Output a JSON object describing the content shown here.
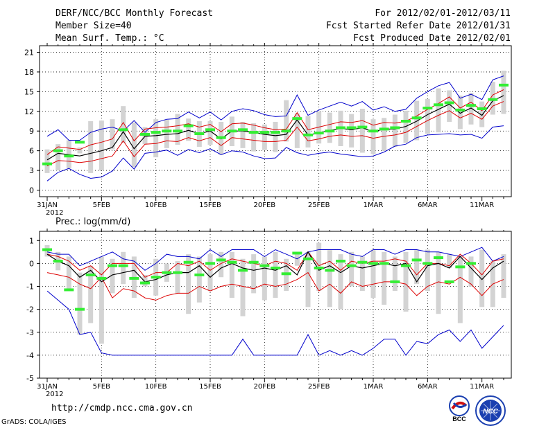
{
  "header": {
    "title": "DERF/NCC/BCC Monthly Forecast",
    "member_size": "Member Size=40",
    "variable": "Mean Surf. Temp.: °C",
    "period": "For 2012/02/01-2012/03/11",
    "fcst_started": "Fcst Started Refer Date 2012/01/31",
    "fcst_produced": "Fcst Produced Date 2012/02/01"
  },
  "footer": {
    "url": "http://cmdp.ncc.cma.gov.cn",
    "grads": "GrADS: COLA/IGES",
    "logo_bcc": "BCC",
    "logo_ncc": "NCC"
  },
  "colors": {
    "max_min": "#0000cc",
    "spread": "#dd0000",
    "mean": "#000000",
    "observed": "#33ee33",
    "box": "#d3d3d3"
  },
  "chart_data": [
    {
      "type": "line",
      "title": "Mean Surf. Temp.: °C",
      "x_start": "31JAN 2012",
      "x_ticks": [
        "31JAN",
        "5FEB",
        "10FEB",
        "15FEB",
        "20FEB",
        "25FEB",
        "1MAR",
        "6MAR",
        "11MAR"
      ],
      "x_year_label": "2012",
      "y_ticks": [
        0,
        3,
        6,
        9,
        12,
        15,
        18,
        21
      ],
      "ylim": [
        -1,
        22
      ],
      "series": [
        {
          "name": "max",
          "values": [
            8.2,
            9.2,
            7.6,
            7.6,
            8.8,
            9.3,
            9.6,
            9.0,
            10.6,
            8.8,
            10.3,
            10.8,
            10.9,
            11.9,
            11.0,
            11.9,
            10.7,
            12.0,
            12.4,
            12.1,
            11.5,
            11.2,
            11.3,
            14.5,
            11.4,
            12.2,
            12.8,
            13.4,
            12.8,
            13.5,
            12.2,
            12.7,
            12.0,
            12.3,
            14.0,
            15.0,
            15.9,
            16.4,
            14.0,
            14.6,
            13.8,
            16.8,
            17.4
          ]
        },
        {
          "name": "min",
          "values": [
            1.4,
            2.7,
            3.3,
            2.4,
            1.8,
            2.0,
            2.9,
            4.9,
            3.2,
            5.6,
            5.8,
            6.1,
            5.3,
            6.2,
            5.7,
            6.3,
            5.4,
            6.0,
            5.8,
            5.2,
            4.8,
            4.9,
            6.5,
            5.7,
            5.3,
            5.6,
            5.8,
            5.5,
            5.3,
            5.1,
            5.2,
            5.8,
            6.7,
            7.0,
            8.0,
            8.4,
            8.5,
            8.6,
            8.4,
            8.5,
            7.9,
            9.6,
            9.8
          ]
        },
        {
          "name": "mean_plus_sd",
          "values": [
            5.4,
            6.6,
            6.4,
            6.2,
            6.9,
            7.3,
            7.8,
            10.3,
            7.5,
            9.3,
            9.5,
            9.6,
            9.8,
            10.1,
            9.6,
            10.0,
            8.9,
            10.1,
            10.2,
            9.9,
            9.5,
            9.2,
            9.3,
            11.8,
            9.2,
            9.6,
            10.0,
            10.4,
            10.3,
            10.6,
            9.9,
            10.3,
            10.2,
            10.5,
            11.3,
            12.3,
            13.2,
            14.2,
            12.5,
            13.4,
            12.1,
            14.5,
            15.3
          ]
        },
        {
          "name": "mean_minus_sd",
          "values": [
            3.7,
            4.5,
            4.4,
            4.2,
            4.4,
            4.8,
            5.2,
            7.5,
            5.1,
            7.0,
            7.1,
            7.5,
            7.4,
            8.0,
            7.5,
            8.0,
            6.8,
            8.0,
            7.8,
            7.6,
            7.4,
            7.4,
            7.6,
            9.6,
            7.5,
            7.8,
            8.2,
            8.4,
            8.2,
            8.3,
            7.9,
            8.2,
            8.4,
            8.8,
            9.7,
            10.6,
            11.4,
            12.1,
            11.0,
            11.7,
            10.8,
            12.8,
            13.5
          ]
        },
        {
          "name": "mean",
          "values": [
            4.6,
            5.6,
            5.4,
            5.2,
            5.6,
            6.0,
            6.5,
            8.9,
            6.3,
            8.2,
            8.3,
            8.5,
            8.6,
            9.1,
            8.6,
            9.0,
            7.8,
            9.0,
            9.0,
            8.8,
            8.5,
            8.3,
            8.5,
            10.7,
            8.4,
            8.7,
            9.1,
            9.4,
            9.2,
            9.5,
            8.9,
            9.3,
            9.3,
            9.7,
            10.5,
            11.5,
            12.3,
            13.1,
            11.7,
            12.5,
            11.4,
            13.6,
            14.4
          ]
        },
        {
          "name": "observed",
          "values": [
            4.0,
            6.0,
            5.2,
            7.3,
            null,
            null,
            null,
            9.2,
            null,
            8.5,
            8.8,
            9.0,
            9.0,
            9.8,
            8.6,
            9.2,
            8.0,
            9.0,
            9.2,
            8.8,
            8.8,
            8.8,
            9.0,
            10.9,
            8.4,
            8.7,
            9.0,
            9.5,
            9.5,
            9.6,
            9.0,
            9.3,
            9.5,
            10.5,
            11.0,
            12.5,
            13.0,
            13.3,
            12.2,
            12.9,
            12.4,
            13.8,
            16.0
          ]
        },
        {
          "name": "box_upper",
          "values": [
            6.2,
            7.0,
            7.6,
            6.5,
            10.5,
            10.6,
            10.8,
            12.8,
            10.3,
            9.6,
            10.8,
            10.7,
            11.6,
            10.9,
            10.5,
            10.5,
            10.4,
            11.2,
            10.4,
            10.2,
            10.0,
            10.4,
            13.7,
            11.7,
            11.3,
            12.0,
            11.8,
            12.1,
            11.6,
            12.4,
            10.8,
            11.0,
            11.5,
            12.1,
            13.6,
            13.9,
            15.5,
            15.2,
            14.4,
            14.8,
            13.5,
            16.5,
            18.2
          ]
        },
        {
          "name": "box_lower",
          "values": [
            2.6,
            3.0,
            3.3,
            5.6,
            2.6,
            3.0,
            6.2,
            7.2,
            3.5,
            7.0,
            5.0,
            6.4,
            6.9,
            7.5,
            6.6,
            6.9,
            5.4,
            6.7,
            6.4,
            5.9,
            6.1,
            5.8,
            7.4,
            6.4,
            6.5,
            7.1,
            7.2,
            6.7,
            6.5,
            5.7,
            5.5,
            6.0,
            6.6,
            7.2,
            7.6,
            8.6,
            8.8,
            10.4,
            9.3,
            10.0,
            9.6,
            11.5,
            11.6
          ]
        }
      ]
    },
    {
      "type": "line",
      "title": "Prec.: log(mm/d)",
      "x_ticks": [
        "31JAN",
        "5FEB",
        "10FEB",
        "15FEB",
        "20FEB",
        "25FEB",
        "1MAR",
        "6MAR",
        "11MAR"
      ],
      "x_year_label": "2012",
      "y_ticks": [
        -5,
        -4,
        -3,
        -2,
        -1,
        0,
        1
      ],
      "ylim": [
        -5,
        1.4
      ],
      "series": [
        {
          "name": "max",
          "values": [
            0.5,
            0.4,
            0.4,
            -0.1,
            0.1,
            0.3,
            0.5,
            0.2,
            0.1,
            -0.3,
            0.0,
            0.4,
            0.3,
            0.3,
            0.2,
            0.6,
            0.3,
            0.6,
            0.6,
            0.6,
            0.3,
            0.6,
            0.4,
            0.2,
            0.5,
            0.6,
            0.6,
            0.6,
            0.4,
            0.3,
            0.6,
            0.6,
            0.4,
            0.6,
            0.6,
            0.5,
            0.5,
            0.4,
            0.3,
            0.5,
            0.7,
            0.1,
            0.3
          ]
        },
        {
          "name": "min",
          "values": [
            -1.2,
            -1.6,
            -2.0,
            -3.1,
            -3.0,
            -3.9,
            -4.0,
            -4.0,
            -4.0,
            -4.0,
            -4.0,
            -4.0,
            -4.0,
            -4.0,
            -4.0,
            -4.0,
            -4.0,
            -4.0,
            -3.3,
            -4.0,
            -4.0,
            -4.0,
            -4.0,
            -4.0,
            -3.1,
            -4.0,
            -3.8,
            -4.0,
            -3.8,
            -4.0,
            -3.7,
            -3.3,
            -3.3,
            -4.0,
            -3.4,
            -3.5,
            -3.1,
            -2.9,
            -3.4,
            -2.9,
            -3.7,
            -3.2,
            -2.7
          ]
        },
        {
          "name": "mean_plus_sd",
          "values": [
            0.4,
            0.3,
            0.1,
            -0.3,
            -0.1,
            -0.5,
            0.0,
            0.0,
            0.0,
            -0.6,
            -0.4,
            -0.4,
            0.0,
            -0.1,
            0.1,
            -0.3,
            0.0,
            0.2,
            0.1,
            0.0,
            -0.1,
            0.1,
            0.0,
            -0.3,
            0.5,
            -0.1,
            0.1,
            -0.3,
            0.1,
            0.0,
            0.1,
            0.1,
            0.2,
            0.1,
            -0.5,
            0.0,
            0.0,
            -0.1,
            0.4,
            0.0,
            -0.5,
            0.1,
            0.2
          ]
        },
        {
          "name": "mean_minus_sd",
          "values": [
            -0.4,
            -0.5,
            -0.6,
            -0.9,
            -1.1,
            -0.6,
            -1.5,
            -1.1,
            -1.2,
            -1.5,
            -1.6,
            -1.4,
            -1.3,
            -1.3,
            -1.0,
            -1.2,
            -1.0,
            -0.9,
            -1.0,
            -1.1,
            -0.9,
            -1.0,
            -0.9,
            -0.7,
            -0.4,
            -1.2,
            -0.9,
            -1.3,
            -0.8,
            -1.0,
            -0.9,
            -0.8,
            -0.8,
            -0.9,
            -1.4,
            -1.0,
            -0.8,
            -0.9,
            -0.6,
            -0.9,
            -1.4,
            -0.9,
            -0.7
          ]
        },
        {
          "name": "mean",
          "values": [
            0.4,
            0.1,
            -0.1,
            -0.6,
            -0.3,
            -0.8,
            -0.5,
            -0.4,
            -0.3,
            -0.8,
            -0.7,
            -0.5,
            -0.4,
            -0.4,
            -0.1,
            -0.6,
            -0.2,
            0.0,
            -0.2,
            -0.3,
            -0.2,
            -0.3,
            -0.1,
            -0.5,
            0.5,
            -0.3,
            -0.1,
            -0.4,
            -0.1,
            -0.2,
            -0.1,
            0.0,
            -0.1,
            0.0,
            -0.8,
            -0.1,
            0.0,
            -0.2,
            0.3,
            -0.2,
            -0.7,
            -0.2,
            0.1
          ]
        },
        {
          "name": "observed",
          "values": [
            0.6,
            0.1,
            -1.15,
            -2.0,
            -0.5,
            -0.65,
            -0.1,
            -0.1,
            -0.65,
            -0.85,
            -0.6,
            -0.4,
            -0.4,
            0.05,
            -0.5,
            0.0,
            0.15,
            0.05,
            -0.3,
            0.05,
            -0.1,
            -0.2,
            -0.45,
            0.45,
            0.2,
            -0.2,
            -0.3,
            0.1,
            -0.1,
            0.05,
            0.0,
            0.0,
            -0.8,
            -0.1,
            0.15,
            0.0,
            0.25,
            -0.8,
            -0.15,
            0.0,
            null,
            null,
            null
          ]
        },
        {
          "name": "box_upper",
          "values": [
            0.8,
            0.5,
            0.3,
            -0.4,
            -0.1,
            0.3,
            0.2,
            0.5,
            0.3,
            -0.5,
            0.2,
            0.0,
            0.1,
            0.4,
            0.3,
            0.4,
            0.5,
            0.5,
            0.2,
            0.4,
            0.3,
            0.5,
            0.2,
            0.4,
            0.5,
            0.9,
            0.6,
            0.4,
            0.5,
            0.3,
            0.6,
            0.5,
            0.3,
            0.5,
            0.6,
            0.6,
            0.5,
            0.4,
            0.3,
            0.3,
            0.6,
            0.1,
            0.4
          ]
        },
        {
          "name": "box_lower",
          "values": [
            0.3,
            -0.3,
            -1.2,
            -3.1,
            -2.6,
            -3.5,
            -1.3,
            -0.9,
            -1.5,
            -1.0,
            -1.4,
            -0.8,
            -1.3,
            -2.2,
            -1.7,
            -1.2,
            -0.6,
            -1.5,
            -2.3,
            -1.3,
            -1.6,
            -1.5,
            -1.2,
            -0.1,
            -1.9,
            -1.2,
            -1.9,
            -2.0,
            -1.0,
            -1.2,
            -1.5,
            -1.8,
            -1.2,
            -2.1,
            -0.9,
            -1.2,
            -2.2,
            -0.2,
            -2.6,
            -1.0,
            -1.9,
            -1.9,
            -1.5
          ]
        }
      ]
    }
  ]
}
